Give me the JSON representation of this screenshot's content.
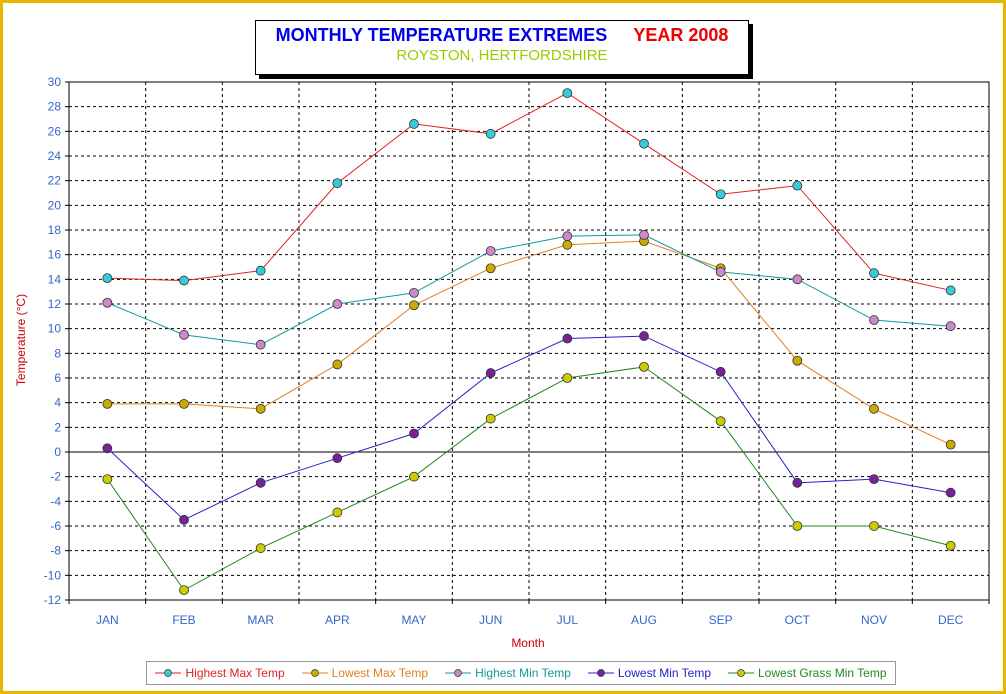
{
  "title": {
    "main": "MONTHLY TEMPERATURE EXTREMES",
    "year": "YEAR  2008",
    "subtitle": "ROYSTON, HERTFORDSHIRE"
  },
  "colors": {
    "frame": "#e6b800",
    "title_main": "#0000ee",
    "title_year": "#ee0000",
    "subtitle": "#99cc00",
    "axis_text": "#3366cc",
    "axis_title": "#cc0000"
  },
  "chart_data": {
    "type": "line",
    "title": "MONTHLY TEMPERATURE EXTREMES    YEAR  2008",
    "subtitle": "ROYSTON, HERTFORDSHIRE",
    "xlabel": "Month",
    "ylabel": "Temperature (°C)",
    "ylim": [
      -12,
      30
    ],
    "ytick_step": 2,
    "grid": true,
    "legend_position": "bottom",
    "categories": [
      "JAN",
      "FEB",
      "MAR",
      "APR",
      "MAY",
      "JUN",
      "JUL",
      "AUG",
      "SEP",
      "OCT",
      "NOV",
      "DEC"
    ],
    "series": [
      {
        "name": "Highest Max Temp",
        "line_color": "#dd2222",
        "marker_color": "#33ccdd",
        "values": [
          14.1,
          13.9,
          14.7,
          21.8,
          26.6,
          25.8,
          29.1,
          25.0,
          20.9,
          21.6,
          14.5,
          13.1
        ]
      },
      {
        "name": "Lowest Max Temp",
        "line_color": "#e08020",
        "marker_color": "#ccaa00",
        "values": [
          3.9,
          3.9,
          3.5,
          7.1,
          11.9,
          14.9,
          16.8,
          17.1,
          14.9,
          7.4,
          3.5,
          0.6
        ]
      },
      {
        "name": "Highest Min Temp",
        "line_color": "#119999",
        "marker_color": "#cc88cc",
        "values": [
          12.1,
          9.5,
          8.7,
          12.0,
          12.9,
          16.3,
          17.5,
          17.6,
          14.6,
          14.0,
          10.7,
          10.2
        ]
      },
      {
        "name": "Lowest Min Temp",
        "line_color": "#2222cc",
        "marker_color": "#772299",
        "values": [
          0.3,
          -5.5,
          -2.5,
          -0.5,
          1.5,
          6.4,
          9.2,
          9.4,
          6.5,
          -2.5,
          -2.2,
          -3.3
        ]
      },
      {
        "name": "Lowest Grass Min Temp",
        "line_color": "#228822",
        "marker_color": "#cccc00",
        "values": [
          -2.2,
          -11.2,
          -7.8,
          -4.9,
          -2.0,
          2.7,
          6.0,
          6.9,
          2.5,
          -6.0,
          -6.0,
          -7.6
        ]
      }
    ]
  }
}
